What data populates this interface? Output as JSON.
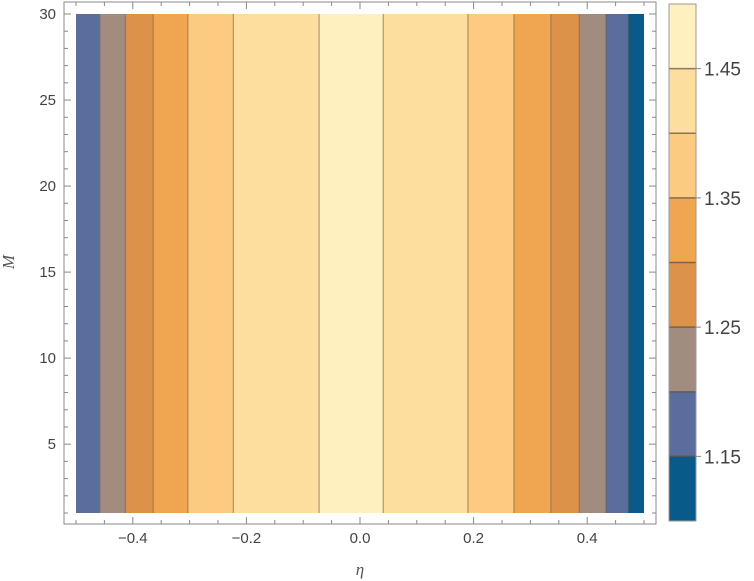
{
  "chart_data": {
    "type": "heatmap",
    "subtype": "contour",
    "title": "",
    "xlabel": "η",
    "ylabel": "M",
    "xlim": [
      -0.5,
      0.5
    ],
    "ylim": [
      1,
      30
    ],
    "x_ticks": [
      {
        "value": -0.4,
        "label": "−0.4"
      },
      {
        "value": -0.2,
        "label": "−0.2"
      },
      {
        "value": 0.0,
        "label": "0.0"
      },
      {
        "value": 0.2,
        "label": "0.2"
      },
      {
        "value": 0.4,
        "label": "0.4"
      }
    ],
    "y_ticks": [
      {
        "value": 5,
        "label": "5"
      },
      {
        "value": 10,
        "label": "10"
      },
      {
        "value": 15,
        "label": "15"
      },
      {
        "value": 20,
        "label": "20"
      },
      {
        "value": 25,
        "label": "25"
      },
      {
        "value": 30,
        "label": "30"
      }
    ],
    "bands": [
      {
        "x_start": -0.5,
        "x_end": -0.458,
        "color": "#5a6d9c"
      },
      {
        "x_start": -0.458,
        "x_end": -0.413,
        "color": "#a28c80"
      },
      {
        "x_start": -0.413,
        "x_end": -0.364,
        "color": "#dc9248"
      },
      {
        "x_start": -0.364,
        "x_end": -0.303,
        "color": "#f0a651"
      },
      {
        "x_start": -0.303,
        "x_end": -0.223,
        "color": "#fcca80"
      },
      {
        "x_start": -0.223,
        "x_end": -0.072,
        "color": "#fdde9f"
      },
      {
        "x_start": -0.072,
        "x_end": 0.041,
        "color": "#fff0c0"
      },
      {
        "x_start": 0.041,
        "x_end": 0.19,
        "color": "#fdde9f"
      },
      {
        "x_start": 0.19,
        "x_end": 0.271,
        "color": "#fcca80"
      },
      {
        "x_start": 0.271,
        "x_end": 0.336,
        "color": "#f0a651"
      },
      {
        "x_start": 0.336,
        "x_end": 0.386,
        "color": "#dc9248"
      },
      {
        "x_start": 0.386,
        "x_end": 0.433,
        "color": "#a28c80"
      },
      {
        "x_start": 0.433,
        "x_end": 0.472,
        "color": "#5a6d9c"
      },
      {
        "x_start": 0.472,
        "x_end": 0.5,
        "color": "#085a8a"
      }
    ],
    "legend": {
      "placement": "right",
      "range": [
        1.1,
        1.5
      ],
      "levels": [
        {
          "from": 1.1,
          "to": 1.15,
          "color": "#085a8a"
        },
        {
          "from": 1.15,
          "to": 1.2,
          "color": "#5a6d9c"
        },
        {
          "from": 1.2,
          "to": 1.25,
          "color": "#a28c80"
        },
        {
          "from": 1.25,
          "to": 1.3,
          "color": "#dc9248"
        },
        {
          "from": 1.3,
          "to": 1.35,
          "color": "#f0a651"
        },
        {
          "from": 1.35,
          "to": 1.4,
          "color": "#fcca80"
        },
        {
          "from": 1.4,
          "to": 1.45,
          "color": "#fdde9f"
        },
        {
          "from": 1.45,
          "to": 1.5,
          "color": "#fff0c0"
        }
      ],
      "labels": [
        {
          "value": 1.15,
          "label": "1.15"
        },
        {
          "value": 1.25,
          "label": "1.25"
        },
        {
          "value": 1.35,
          "label": "1.35"
        },
        {
          "value": 1.45,
          "label": "1.45"
        }
      ]
    }
  }
}
